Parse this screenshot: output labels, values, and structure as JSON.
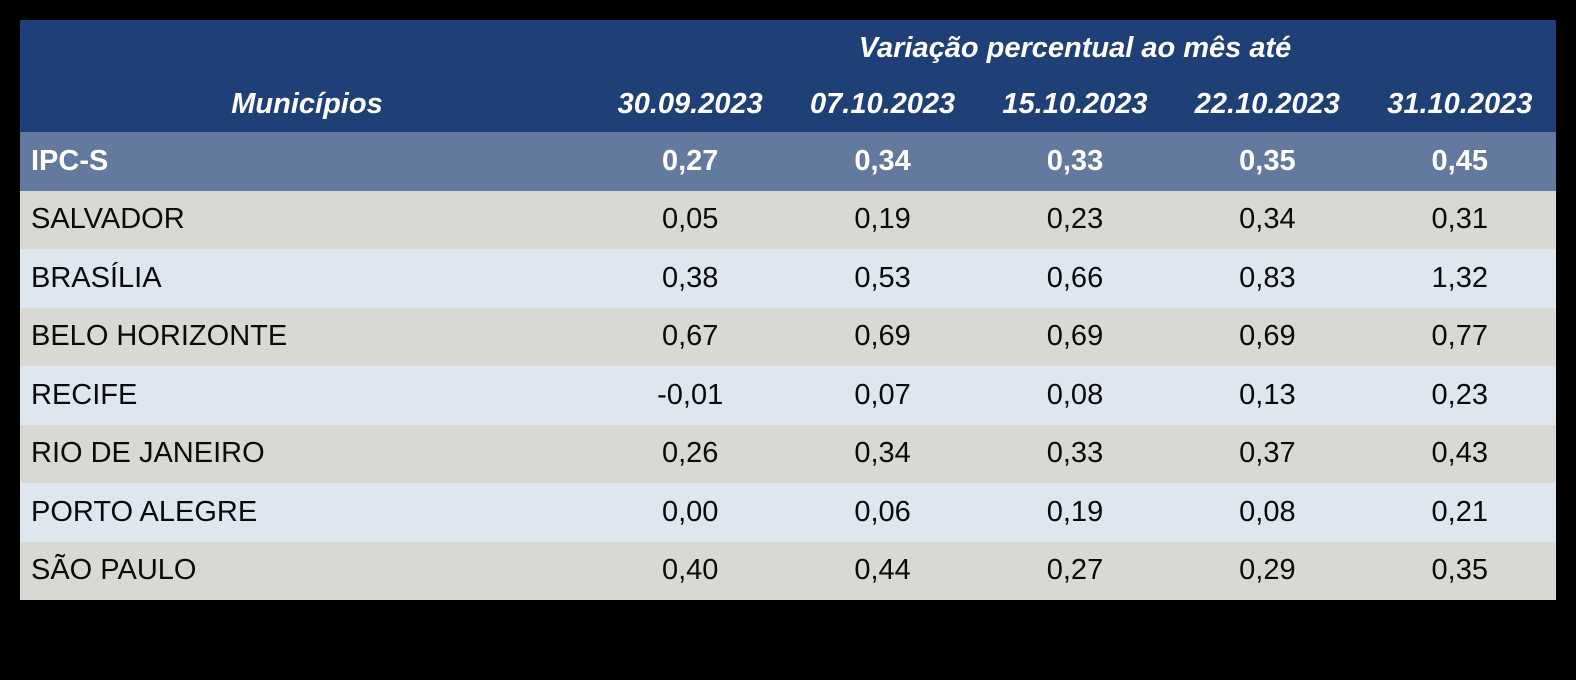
{
  "colors": {
    "page_background": "#000000",
    "header_bg": "#1f4077",
    "header_text": "#ffffff",
    "ipcs_row_bg": "#64799e",
    "ipcs_row_text": "#ffffff",
    "row_gray_bg": "#d9d9d3",
    "row_blue_bg": "#dee6f0",
    "row_text": "#0a0a0a"
  },
  "table": {
    "title": "Variação percentual ao mês até",
    "municipios_header": "Municípios",
    "date_headers": [
      "30.09.2023",
      "07.10.2023",
      "15.10.2023",
      "22.10.2023",
      "31.10.2023"
    ],
    "rows": [
      {
        "name": "IPC-S",
        "values": [
          "0,27",
          "0,34",
          "0,33",
          "0,35",
          "0,45"
        ]
      },
      {
        "name": "SALVADOR",
        "values": [
          "0,05",
          "0,19",
          "0,23",
          "0,34",
          "0,31"
        ]
      },
      {
        "name": "BRASÍLIA",
        "values": [
          "0,38",
          "0,53",
          "0,66",
          "0,83",
          "1,32"
        ]
      },
      {
        "name": "BELO HORIZONTE",
        "values": [
          "0,67",
          "0,69",
          "0,69",
          "0,69",
          "0,77"
        ]
      },
      {
        "name": "RECIFE",
        "values": [
          "-0,01",
          "0,07",
          "0,08",
          "0,13",
          "0,23"
        ]
      },
      {
        "name": "RIO DE JANEIRO",
        "values": [
          "0,26",
          "0,34",
          "0,33",
          "0,37",
          "0,43"
        ]
      },
      {
        "name": "PORTO ALEGRE",
        "values": [
          "0,00",
          "0,06",
          "0,19",
          "0,08",
          "0,21"
        ]
      },
      {
        "name": "SÃO PAULO",
        "values": [
          "0,40",
          "0,44",
          "0,27",
          "0,29",
          "0,35"
        ]
      }
    ]
  },
  "chart_data": {
    "type": "table",
    "title": "Variação percentual ao mês até",
    "row_header_label": "Municípios",
    "columns": [
      "30.09.2023",
      "07.10.2023",
      "15.10.2023",
      "22.10.2023",
      "31.10.2023"
    ],
    "series": [
      {
        "name": "IPC-S",
        "values": [
          0.27,
          0.34,
          0.33,
          0.35,
          0.45
        ]
      },
      {
        "name": "SALVADOR",
        "values": [
          0.05,
          0.19,
          0.23,
          0.34,
          0.31
        ]
      },
      {
        "name": "BRASÍLIA",
        "values": [
          0.38,
          0.53,
          0.66,
          0.83,
          1.32
        ]
      },
      {
        "name": "BELO HORIZONTE",
        "values": [
          0.67,
          0.69,
          0.69,
          0.69,
          0.77
        ]
      },
      {
        "name": "RECIFE",
        "values": [
          -0.01,
          0.07,
          0.08,
          0.13,
          0.23
        ]
      },
      {
        "name": "RIO DE JANEIRO",
        "values": [
          0.26,
          0.34,
          0.33,
          0.37,
          0.43
        ]
      },
      {
        "name": "PORTO ALEGRE",
        "values": [
          0.0,
          0.06,
          0.19,
          0.08,
          0.21
        ]
      },
      {
        "name": "SÃO PAULO",
        "values": [
          0.4,
          0.44,
          0.27,
          0.29,
          0.35
        ]
      }
    ],
    "layout": {
      "unit": "percent variation per month",
      "highlight_row": "IPC-S",
      "alternating_row_shading": true
    }
  }
}
